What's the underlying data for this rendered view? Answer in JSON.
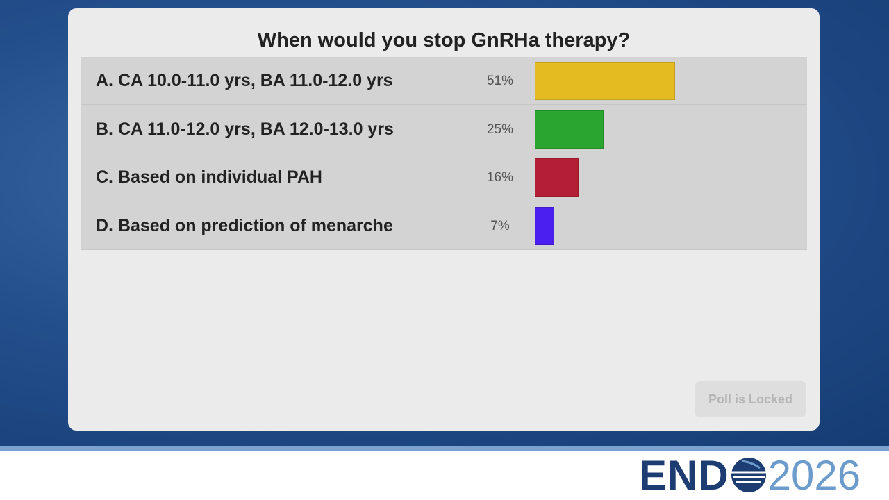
{
  "poll": {
    "question": "When would you stop GnRHa therapy?",
    "options": [
      {
        "label": "A. CA 10.0-11.0 yrs, BA 11.0-12.0 yrs",
        "value": 51,
        "value_label": "51%",
        "color": "#e5bb22"
      },
      {
        "label": "B. CA 11.0-12.0 yrs, BA 12.0-13.0 yrs",
        "value": 25,
        "value_label": "25%",
        "color": "#2aa52f"
      },
      {
        "label": "C. Based on individual PAH",
        "value": 16,
        "value_label": "16%",
        "color": "#b51f36"
      },
      {
        "label": "D. Based on prediction of menarche",
        "value": 7,
        "value_label": "7%",
        "color": "#4a1ff0"
      }
    ],
    "button": "Poll is Locked"
  },
  "logo": {
    "left": "END",
    "right": "2026"
  }
}
